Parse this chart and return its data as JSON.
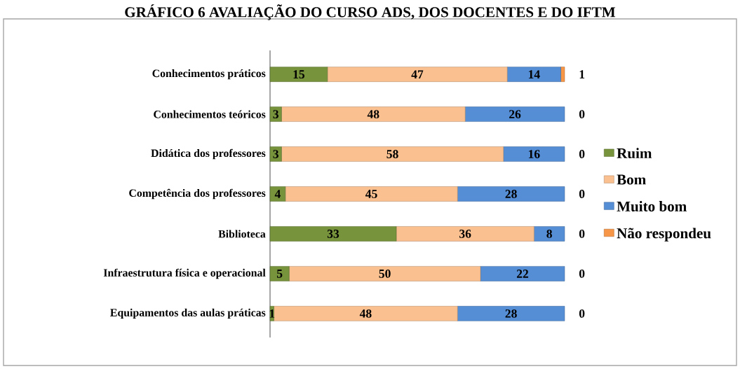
{
  "chart_data": {
    "type": "bar",
    "orientation": "horizontal",
    "stacked": true,
    "title": "GRÁFICO 6 AVALIAÇÃO DO CURSO ADS, DOS DOCENTES E DO IFTM",
    "categories": [
      "Conhecimentos práticos",
      "Conhecimentos teóricos",
      "Didática dos professores",
      "Competência dos professores",
      "Biblioteca",
      "Infraestrutura física e operacional",
      "Equipamentos das aulas práticas"
    ],
    "series": [
      {
        "name": "Ruim",
        "color": "#77933c",
        "values": [
          15,
          3,
          3,
          4,
          33,
          5,
          1
        ]
      },
      {
        "name": "Bom",
        "color": "#fac090",
        "values": [
          47,
          48,
          58,
          45,
          36,
          50,
          48
        ]
      },
      {
        "name": "Muito bom",
        "color": "#558ed5",
        "values": [
          14,
          26,
          16,
          28,
          8,
          22,
          28
        ]
      },
      {
        "name": "Não respondeu",
        "color": "#f79646",
        "values": [
          1,
          0,
          0,
          0,
          0,
          0,
          0
        ]
      }
    ],
    "data_labels": true,
    "legend": "right"
  }
}
